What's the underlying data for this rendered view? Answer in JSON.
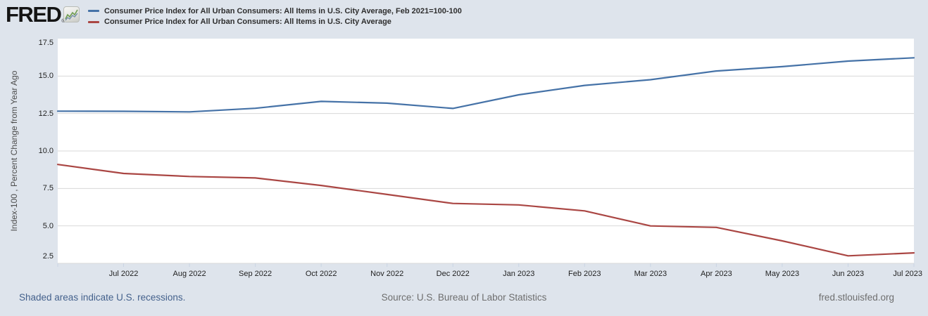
{
  "header": {
    "logo_text": "FRED",
    "registered_mark": "®"
  },
  "footer": {
    "recession_note": "Shaded areas indicate U.S. recessions.",
    "source": "Source: U.S. Bureau of Labor Statistics",
    "site": "fred.stlouisfed.org"
  },
  "colors": {
    "background": "#dee4ec",
    "plot_background": "#ffffff",
    "gridline": "#d8d8d8",
    "tick_mark": "#c9d4e3",
    "series_blue": "#4572a7",
    "series_red": "#aa4643",
    "footer_link": "#44618c",
    "footer_text": "#6e6e6e"
  },
  "chart_data": {
    "type": "line",
    "title": "",
    "xlabel": "",
    "ylabel": "Index-100 , Percent Change from Year Ago",
    "ylim": [
      2.5,
      17.5
    ],
    "y_ticks": [
      17.5,
      15.0,
      12.5,
      10.0,
      7.5,
      5.0,
      2.5
    ],
    "grid": true,
    "legend_position": "top-left",
    "x": [
      "Jun 2022",
      "Jul 2022",
      "Aug 2022",
      "Sep 2022",
      "Oct 2022",
      "Nov 2022",
      "Dec 2022",
      "Jan 2023",
      "Feb 2023",
      "Mar 2023",
      "Apr 2023",
      "May 2023",
      "Jun 2023",
      "Jul 2023"
    ],
    "x_tick_labels": [
      "Jul 2022",
      "Aug 2022",
      "Sep 2022",
      "Oct 2022",
      "Nov 2022",
      "Dec 2022",
      "Jan 2023",
      "Feb 2023",
      "Mar 2023",
      "Apr 2023",
      "May 2023",
      "Jun 2023",
      "Jul 2023"
    ],
    "series": [
      {
        "name": "Consumer Price Index for All Urban Consumers: All Items in U.S. City Average, Feb 2021=100-100",
        "color": "#4572a7",
        "values": [
          12.66,
          12.65,
          12.61,
          12.85,
          13.31,
          13.19,
          12.84,
          13.75,
          14.38,
          14.76,
          15.34,
          15.63,
          16.0,
          16.22
        ]
      },
      {
        "name": "Consumer Price Index for All Urban Consumers: All Items in U.S. City Average",
        "color": "#aa4643",
        "values": [
          9.1,
          8.5,
          8.3,
          8.2,
          7.7,
          7.1,
          6.5,
          6.4,
          6.0,
          5.0,
          4.9,
          4.0,
          3.0,
          3.2
        ]
      }
    ]
  }
}
